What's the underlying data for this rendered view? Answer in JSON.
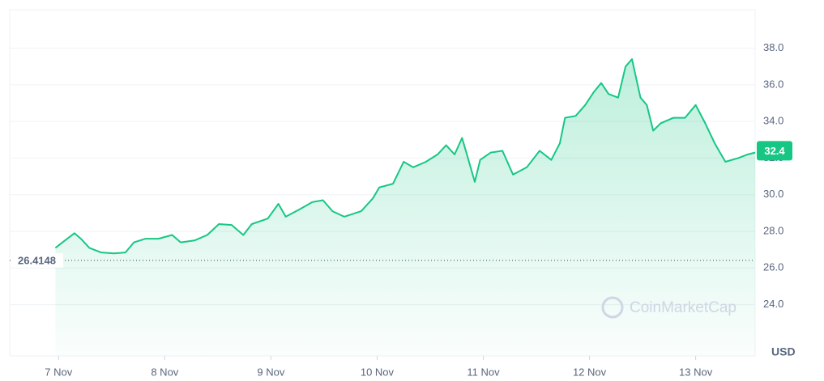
{
  "chart_data": {
    "type": "line",
    "axis_unit": "USD",
    "watermark": "CoinMarketCap",
    "open_price": 26.4148,
    "last_price": 32.4,
    "color": "#16c784",
    "grid": true,
    "xlim": [
      -0.46,
      6.56
    ],
    "xticks": [
      {
        "value": 0,
        "label": "7 Nov"
      },
      {
        "value": 1,
        "label": "8 Nov"
      },
      {
        "value": 2,
        "label": "9 Nov"
      },
      {
        "value": 3,
        "label": "10 Nov"
      },
      {
        "value": 4,
        "label": "11 Nov"
      },
      {
        "value": 5,
        "label": "12 Nov"
      },
      {
        "value": 6,
        "label": "13 Nov"
      }
    ],
    "ylim": [
      21.2,
      40.1
    ],
    "yticks": [
      {
        "value": 24,
        "label": "24.0"
      },
      {
        "value": 26,
        "label": "26.0"
      },
      {
        "value": 28,
        "label": "28.0"
      },
      {
        "value": 30,
        "label": "30.0"
      },
      {
        "value": 32,
        "label": "32.0"
      },
      {
        "value": 34,
        "label": "34.0"
      },
      {
        "value": 36,
        "label": "36.0"
      },
      {
        "value": 38,
        "label": "38.0"
      }
    ],
    "x": [
      -0.03,
      0.06,
      0.15,
      0.21,
      0.29,
      0.4,
      0.52,
      0.63,
      0.71,
      0.82,
      0.94,
      1.07,
      1.15,
      1.28,
      1.4,
      1.51,
      1.63,
      1.74,
      1.82,
      1.97,
      2.07,
      2.14,
      2.27,
      2.39,
      2.49,
      2.58,
      2.69,
      2.85,
      2.96,
      3.02,
      3.15,
      3.25,
      3.34,
      3.46,
      3.57,
      3.65,
      3.73,
      3.8,
      3.86,
      3.92,
      3.97,
      4.07,
      4.18,
      4.28,
      4.41,
      4.53,
      4.64,
      4.72,
      4.77,
      4.87,
      4.96,
      5.04,
      5.11,
      5.18,
      5.27,
      5.34,
      5.4,
      5.48,
      5.54,
      5.6,
      5.67,
      5.79,
      5.9,
      6.0,
      6.09,
      6.18,
      6.28,
      6.4,
      6.49,
      6.56
    ],
    "values": [
      27.1,
      27.5,
      27.9,
      27.6,
      27.1,
      26.85,
      26.8,
      26.85,
      27.4,
      27.6,
      27.6,
      27.8,
      27.4,
      27.5,
      27.8,
      28.4,
      28.35,
      27.8,
      28.4,
      28.7,
      29.5,
      28.8,
      29.2,
      29.6,
      29.7,
      29.1,
      28.8,
      29.1,
      29.8,
      30.4,
      30.6,
      31.8,
      31.5,
      31.8,
      32.2,
      32.7,
      32.2,
      33.1,
      31.9,
      30.7,
      31.9,
      32.3,
      32.4,
      31.1,
      31.5,
      32.4,
      31.9,
      32.8,
      34.2,
      34.3,
      34.9,
      35.6,
      36.1,
      35.5,
      35.3,
      37.0,
      37.4,
      35.3,
      34.9,
      33.5,
      33.9,
      34.2,
      34.2,
      34.9,
      33.9,
      32.8,
      31.8,
      32.0,
      32.2,
      32.3
    ]
  }
}
